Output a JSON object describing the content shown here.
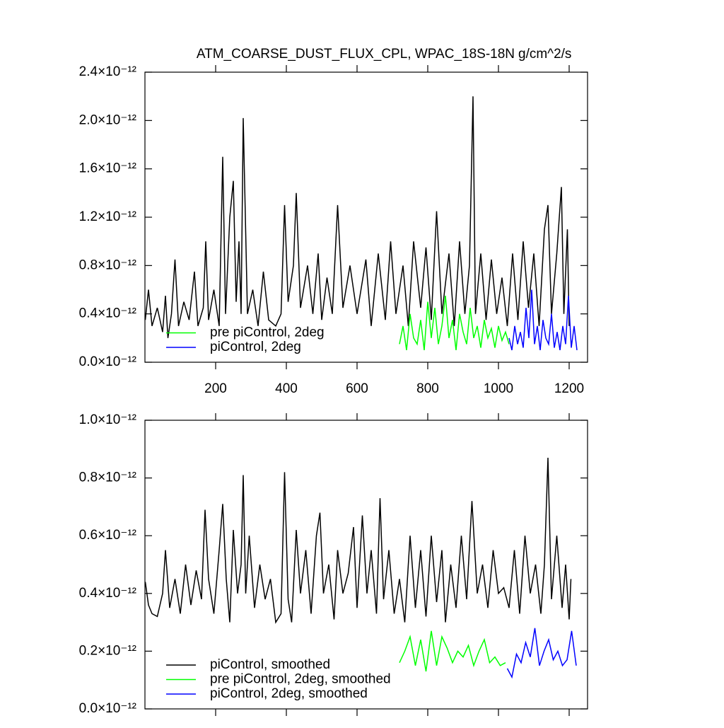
{
  "chart_data": [
    {
      "type": "line",
      "title": "ATM_COARSE_DUST_FLUX_CPL, WPAC_18S-18N",
      "units": "g/cm^2/s",
      "xlim": [
        0,
        1252
      ],
      "xticks": [
        200,
        400,
        600,
        800,
        1000,
        1200
      ],
      "ylim": [
        0,
        2.4e-12
      ],
      "yticks": [
        {
          "value": 0,
          "label": "0.0×10⁻¹²"
        },
        {
          "value": 4e-13,
          "label": "0.4×10⁻¹²"
        },
        {
          "value": 8e-13,
          "label": "0.8×10⁻¹²"
        },
        {
          "value": 1.2e-12,
          "label": "1.2×10⁻¹²"
        },
        {
          "value": 1.6e-12,
          "label": "1.6×10⁻¹²"
        },
        {
          "value": 2e-12,
          "label": "2.0×10⁻¹²"
        },
        {
          "value": 2.4e-12,
          "label": "2.4×10⁻¹²"
        }
      ],
      "legend": "lower left",
      "series": [
        {
          "color": "#000000",
          "x": [
            1,
            10,
            20,
            35,
            50,
            58,
            65,
            75,
            85,
            95,
            110,
            125,
            140,
            150,
            165,
            172,
            180,
            195,
            210,
            220,
            228,
            240,
            250,
            258,
            266,
            272,
            278,
            282,
            290,
            305,
            320,
            335,
            350,
            370,
            385,
            395,
            405,
            420,
            428,
            440,
            460,
            475,
            490,
            500,
            515,
            530,
            545,
            560,
            580,
            600,
            625,
            640,
            660,
            680,
            695,
            710,
            730,
            745,
            760,
            780,
            795,
            810,
            825,
            840,
            860,
            875,
            890,
            905,
            918,
            928,
            935,
            950,
            965,
            980,
            995,
            1010,
            1025,
            1040,
            1055,
            1070,
            1085,
            1100,
            1115,
            1130,
            1140,
            1150,
            1165,
            1178,
            1185,
            1195,
            1200
          ],
          "values": [
            3.5e-13,
            6e-13,
            3e-13,
            4.5e-13,
            2.5e-13,
            5.5e-13,
            2e-13,
            4e-13,
            8.5e-13,
            3e-13,
            5e-13,
            3.5e-13,
            7.5e-13,
            3e-13,
            4.5e-13,
            1e-12,
            3.5e-13,
            6e-13,
            3e-13,
            1.7e-12,
            4e-13,
            1.2e-12,
            1.5e-12,
            5e-13,
            1e-12,
            4e-13,
            2.02e-12,
            1.48e-12,
            4e-13,
            6e-13,
            3e-13,
            7.5e-13,
            3.5e-13,
            3e-13,
            4e-13,
            1.3e-12,
            5e-13,
            8e-13,
            1.4e-12,
            4.5e-13,
            8e-13,
            4e-13,
            9e-13,
            3.5e-13,
            7e-13,
            4e-13,
            1.3e-12,
            4.5e-13,
            8e-13,
            4e-13,
            8.5e-13,
            3e-13,
            9e-13,
            3.5e-13,
            1e-12,
            4e-13,
            8e-13,
            3e-13,
            1e-12,
            4.5e-13,
            9.5e-13,
            3.5e-13,
            1.25e-12,
            4e-13,
            9e-13,
            3e-13,
            1e-12,
            4e-13,
            8e-13,
            2.2e-12,
            4e-13,
            9e-13,
            3.5e-13,
            8.5e-13,
            4e-13,
            7e-13,
            3e-13,
            9e-13,
            3.5e-13,
            1e-12,
            4.5e-13,
            9e-13,
            3e-13,
            1.1e-12,
            1.3e-12,
            4e-13,
            9e-13,
            1.45e-12,
            4e-13,
            1.1e-12,
            3e-13
          ]
        },
        {
          "name": "pre piControl, 2deg",
          "color": "#00ff00",
          "x": [
            720,
            730,
            740,
            750,
            760,
            770,
            780,
            790,
            800,
            810,
            820,
            830,
            840,
            850,
            860,
            870,
            880,
            890,
            900,
            910,
            920,
            930,
            940,
            950,
            960,
            970,
            980,
            990,
            1000,
            1010,
            1020,
            1030
          ],
          "values": [
            1.5e-13,
            3e-13,
            1e-13,
            4e-13,
            2e-13,
            1.5e-13,
            3.5e-13,
            1e-13,
            5e-13,
            2e-13,
            4.5e-13,
            1.5e-13,
            3e-13,
            5.5e-13,
            2e-13,
            3.5e-13,
            1e-13,
            4e-13,
            2.5e-13,
            1.5e-13,
            4.5e-13,
            2e-13,
            3e-13,
            1.2e-13,
            3.5e-13,
            2e-13,
            2.8e-13,
            1.2e-13,
            3e-13,
            1.8e-13,
            2.5e-13,
            1.5e-13
          ]
        },
        {
          "name": "piControl, 2deg",
          "color": "#0000ff",
          "x": [
            1030,
            1038,
            1046,
            1054,
            1062,
            1070,
            1078,
            1086,
            1094,
            1102,
            1110,
            1118,
            1126,
            1134,
            1142,
            1150,
            1158,
            1166,
            1174,
            1182,
            1190,
            1198,
            1206,
            1214,
            1222
          ],
          "values": [
            2e-13,
            1e-13,
            3e-13,
            1.5e-13,
            2.5e-13,
            1.2e-13,
            4.5e-13,
            2e-13,
            6e-13,
            1.5e-13,
            3e-13,
            1e-13,
            3.5e-13,
            2e-13,
            1.5e-13,
            4e-13,
            1.2e-13,
            2.5e-13,
            1e-13,
            3e-13,
            1.5e-13,
            5.5e-13,
            1.2e-13,
            3e-13,
            1e-13
          ]
        }
      ]
    },
    {
      "type": "line",
      "xlim": [
        0,
        1252
      ],
      "xticks": [
        200,
        400,
        600,
        800,
        1000,
        1200
      ],
      "ylim": [
        0,
        1e-12
      ],
      "yticks": [
        {
          "value": 0,
          "label": "0.0×10⁻¹²"
        },
        {
          "value": 2e-13,
          "label": "0.2×10⁻¹²"
        },
        {
          "value": 4e-13,
          "label": "0.4×10⁻¹²"
        },
        {
          "value": 6e-13,
          "label": "0.6×10⁻¹²"
        },
        {
          "value": 8e-13,
          "label": "0.8×10⁻¹²"
        },
        {
          "value": 1e-12,
          "label": "1.0×10⁻¹²"
        }
      ],
      "legend": "lower left",
      "series": [
        {
          "name": "piControl, smoothed",
          "color": "#000000",
          "x": [
            1,
            10,
            20,
            35,
            50,
            58,
            70,
            85,
            100,
            115,
            130,
            145,
            160,
            170,
            180,
            195,
            210,
            220,
            230,
            240,
            250,
            262,
            272,
            278,
            285,
            295,
            310,
            325,
            340,
            355,
            370,
            385,
            395,
            405,
            415,
            428,
            440,
            455,
            470,
            485,
            495,
            505,
            520,
            535,
            545,
            560,
            575,
            590,
            600,
            615,
            628,
            640,
            655,
            665,
            675,
            690,
            705,
            720,
            735,
            750,
            765,
            780,
            795,
            810,
            825,
            840,
            850,
            865,
            880,
            895,
            910,
            925,
            940,
            955,
            970,
            985,
            1000,
            1015,
            1030,
            1045,
            1060,
            1075,
            1090,
            1105,
            1120,
            1130,
            1140,
            1150,
            1165,
            1180,
            1190,
            1200,
            1205
          ],
          "values": [
            4.4e-13,
            3.6e-13,
            3.3e-13,
            3.2e-13,
            4e-13,
            5.5e-13,
            3.5e-13,
            4.5e-13,
            3.3e-13,
            5e-13,
            3.6e-13,
            4.8e-13,
            3.8e-13,
            6.9e-13,
            4.5e-13,
            3.3e-13,
            5.5e-13,
            7.1e-13,
            4.5e-13,
            3e-13,
            6.2e-13,
            4e-13,
            5e-13,
            8.1e-13,
            4e-13,
            6e-13,
            3.5e-13,
            5e-13,
            3.8e-13,
            4.5e-13,
            3e-13,
            3.3e-13,
            8.2e-13,
            3.8e-13,
            3e-13,
            6.2e-13,
            4e-13,
            5.5e-13,
            3.3e-13,
            6e-13,
            6.8e-13,
            4e-13,
            5e-13,
            3.1e-13,
            5.5e-13,
            4e-13,
            4.7e-13,
            6.3e-13,
            3.5e-13,
            6.7e-13,
            4e-13,
            5.5e-13,
            3.3e-13,
            7.3e-13,
            3.8e-13,
            5.5e-13,
            3.3e-13,
            4.5e-13,
            3e-13,
            6e-13,
            3.5e-13,
            5.5e-13,
            3.2e-13,
            6e-13,
            3.7e-13,
            5.5e-13,
            3e-13,
            5e-13,
            3.5e-13,
            6e-13,
            3.8e-13,
            7.2e-13,
            4e-13,
            5e-13,
            3.5e-13,
            5.5e-13,
            4e-13,
            4.2e-13,
            3.5e-13,
            5.5e-13,
            3.3e-13,
            6e-13,
            4e-13,
            5e-13,
            3.3e-13,
            5e-13,
            8.7e-13,
            3.8e-13,
            6e-13,
            3.5e-13,
            5e-13,
            3.1e-13,
            4.5e-13
          ]
        },
        {
          "name": "pre piControl, 2deg, smoothed",
          "color": "#00ff00",
          "x": [
            720,
            735,
            750,
            765,
            780,
            795,
            810,
            825,
            840,
            855,
            870,
            885,
            900,
            915,
            930,
            945,
            960,
            975,
            990,
            1005,
            1020
          ],
          "values": [
            1.6e-13,
            2e-13,
            2.5e-13,
            1.5e-13,
            2.4e-13,
            1.3e-13,
            2.7e-13,
            1.5e-13,
            2.5e-13,
            2.1e-13,
            1.6e-13,
            2e-13,
            1.8e-13,
            2.2e-13,
            1.5e-13,
            2e-13,
            2.4e-13,
            1.6e-13,
            1.8e-13,
            1.5e-13,
            1.6e-13
          ]
        },
        {
          "name": "piControl, 2deg, smoothed",
          "color": "#0000ff",
          "x": [
            1025,
            1038,
            1051,
            1064,
            1077,
            1090,
            1103,
            1116,
            1129,
            1142,
            1155,
            1168,
            1181,
            1194,
            1207,
            1220
          ],
          "values": [
            1.4e-13,
            1.1e-13,
            1.9e-13,
            1.6e-13,
            2.3e-13,
            1.8e-13,
            2.8e-13,
            1.5e-13,
            2e-13,
            2.4e-13,
            1.7e-13,
            2e-13,
            1.5e-13,
            1.7e-13,
            2.7e-13,
            1.5e-13
          ]
        }
      ]
    }
  ]
}
